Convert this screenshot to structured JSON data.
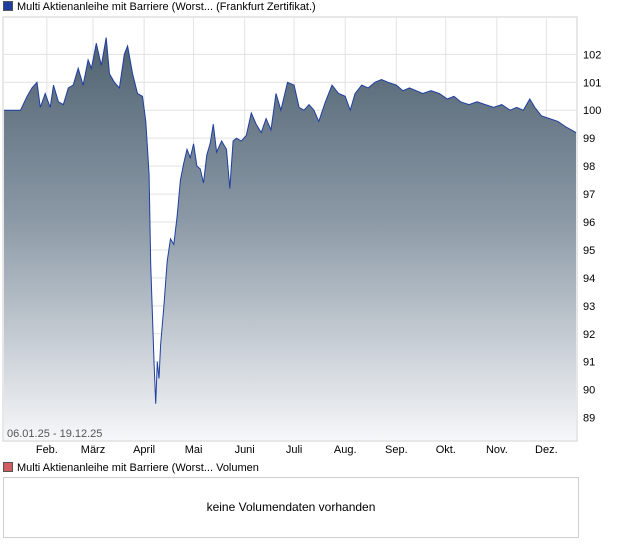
{
  "legend": {
    "price_label": "Multi Aktienanleihe mit Barriere (Worst... (Frankfurt Zertifikat.)",
    "price_color": "#1f3f9f",
    "volume_label": "Multi Aktienanleihe mit Barriere (Worst... Volumen",
    "volume_color": "#d06060"
  },
  "volume": {
    "message": "keine Volumendaten vorhanden"
  },
  "chart_data": {
    "type": "area",
    "title": "",
    "xlabel": "",
    "ylabel": "",
    "date_range_label": "06.01.25 - 19.12.25",
    "ylim": [
      88.2,
      103.3
    ],
    "y_ticks": [
      89,
      90,
      91,
      92,
      93,
      94,
      95,
      96,
      97,
      98,
      99,
      100,
      101,
      102
    ],
    "grid": true,
    "x_ticks": [
      {
        "date": "2025-02-01",
        "label": "Feb."
      },
      {
        "date": "2025-03-01",
        "label": "März"
      },
      {
        "date": "2025-04-01",
        "label": "April"
      },
      {
        "date": "2025-05-01",
        "label": "Mai"
      },
      {
        "date": "2025-06-01",
        "label": "Juni"
      },
      {
        "date": "2025-07-01",
        "label": "Juli"
      },
      {
        "date": "2025-08-01",
        "label": "Aug."
      },
      {
        "date": "2025-09-01",
        "label": "Sep."
      },
      {
        "date": "2025-10-01",
        "label": "Okt."
      },
      {
        "date": "2025-11-01",
        "label": "Nov."
      },
      {
        "date": "2025-12-01",
        "label": "Dez."
      }
    ],
    "series": [
      {
        "values": [
          [
            "2025-01-06",
            100.0
          ],
          [
            "2025-01-10",
            100.0
          ],
          [
            "2025-01-16",
            100.0
          ],
          [
            "2025-01-20",
            100.5
          ],
          [
            "2025-01-23",
            100.8
          ],
          [
            "2025-01-26",
            101.0
          ],
          [
            "2025-01-28",
            100.1
          ],
          [
            "2025-01-31",
            100.6
          ],
          [
            "2025-02-03",
            100.1
          ],
          [
            "2025-02-05",
            100.9
          ],
          [
            "2025-02-08",
            100.3
          ],
          [
            "2025-02-11",
            100.2
          ],
          [
            "2025-02-14",
            100.8
          ],
          [
            "2025-02-17",
            100.9
          ],
          [
            "2025-02-20",
            101.5
          ],
          [
            "2025-02-23",
            100.9
          ],
          [
            "2025-02-26",
            101.8
          ],
          [
            "2025-02-28",
            101.5
          ],
          [
            "2025-03-03",
            102.4
          ],
          [
            "2025-03-06",
            101.6
          ],
          [
            "2025-03-09",
            102.6
          ],
          [
            "2025-03-11",
            101.3
          ],
          [
            "2025-03-14",
            101.0
          ],
          [
            "2025-03-17",
            100.8
          ],
          [
            "2025-03-20",
            102.0
          ],
          [
            "2025-03-22",
            102.3
          ],
          [
            "2025-03-25",
            101.3
          ],
          [
            "2025-03-28",
            100.6
          ],
          [
            "2025-03-31",
            100.5
          ],
          [
            "2025-04-02",
            99.6
          ],
          [
            "2025-04-04",
            97.7
          ],
          [
            "2025-04-05",
            94.5
          ],
          [
            "2025-04-07",
            91.0
          ],
          [
            "2025-04-08",
            89.5
          ],
          [
            "2025-04-09",
            91.0
          ],
          [
            "2025-04-10",
            90.4
          ],
          [
            "2025-04-11",
            91.6
          ],
          [
            "2025-04-13",
            93.0
          ],
          [
            "2025-04-15",
            94.6
          ],
          [
            "2025-04-17",
            95.4
          ],
          [
            "2025-04-19",
            95.2
          ],
          [
            "2025-04-21",
            96.2
          ],
          [
            "2025-04-23",
            97.5
          ],
          [
            "2025-04-25",
            98.1
          ],
          [
            "2025-04-27",
            98.6
          ],
          [
            "2025-04-29",
            98.3
          ],
          [
            "2025-05-01",
            98.8
          ],
          [
            "2025-05-03",
            98.0
          ],
          [
            "2025-05-05",
            97.9
          ],
          [
            "2025-05-07",
            97.4
          ],
          [
            "2025-05-09",
            98.4
          ],
          [
            "2025-05-11",
            98.8
          ],
          [
            "2025-05-13",
            99.5
          ],
          [
            "2025-05-15",
            98.5
          ],
          [
            "2025-05-18",
            98.9
          ],
          [
            "2025-05-21",
            98.6
          ],
          [
            "2025-05-23",
            97.2
          ],
          [
            "2025-05-25",
            98.9
          ],
          [
            "2025-05-27",
            99.0
          ],
          [
            "2025-05-30",
            98.9
          ],
          [
            "2025-06-02",
            99.1
          ],
          [
            "2025-06-05",
            99.9
          ],
          [
            "2025-06-08",
            99.5
          ],
          [
            "2025-06-11",
            99.2
          ],
          [
            "2025-06-14",
            99.7
          ],
          [
            "2025-06-17",
            99.3
          ],
          [
            "2025-06-20",
            100.6
          ],
          [
            "2025-06-23",
            100.0
          ],
          [
            "2025-06-27",
            101.0
          ],
          [
            "2025-07-01",
            100.9
          ],
          [
            "2025-07-04",
            100.1
          ],
          [
            "2025-07-07",
            100.0
          ],
          [
            "2025-07-10",
            100.2
          ],
          [
            "2025-07-13",
            100.0
          ],
          [
            "2025-07-16",
            99.6
          ],
          [
            "2025-07-20",
            100.3
          ],
          [
            "2025-07-24",
            100.9
          ],
          [
            "2025-07-28",
            100.6
          ],
          [
            "2025-08-01",
            100.5
          ],
          [
            "2025-08-04",
            100.0
          ],
          [
            "2025-08-07",
            100.6
          ],
          [
            "2025-08-11",
            100.9
          ],
          [
            "2025-08-15",
            100.8
          ],
          [
            "2025-08-19",
            101.0
          ],
          [
            "2025-08-23",
            101.1
          ],
          [
            "2025-08-27",
            101.0
          ],
          [
            "2025-09-01",
            100.9
          ],
          [
            "2025-09-05",
            100.7
          ],
          [
            "2025-09-09",
            100.8
          ],
          [
            "2025-09-13",
            100.7
          ],
          [
            "2025-09-17",
            100.6
          ],
          [
            "2025-09-22",
            100.7
          ],
          [
            "2025-09-27",
            100.6
          ],
          [
            "2025-10-02",
            100.4
          ],
          [
            "2025-10-06",
            100.5
          ],
          [
            "2025-10-10",
            100.3
          ],
          [
            "2025-10-15",
            100.2
          ],
          [
            "2025-10-20",
            100.3
          ],
          [
            "2025-10-25",
            100.2
          ],
          [
            "2025-10-30",
            100.1
          ],
          [
            "2025-11-04",
            100.2
          ],
          [
            "2025-11-09",
            100.0
          ],
          [
            "2025-11-13",
            100.1
          ],
          [
            "2025-11-17",
            100.0
          ],
          [
            "2025-11-21",
            100.4
          ],
          [
            "2025-11-24",
            100.1
          ],
          [
            "2025-11-28",
            99.8
          ],
          [
            "2025-12-03",
            99.7
          ],
          [
            "2025-12-08",
            99.6
          ],
          [
            "2025-12-13",
            99.4
          ],
          [
            "2025-12-19",
            99.2
          ]
        ]
      }
    ]
  }
}
